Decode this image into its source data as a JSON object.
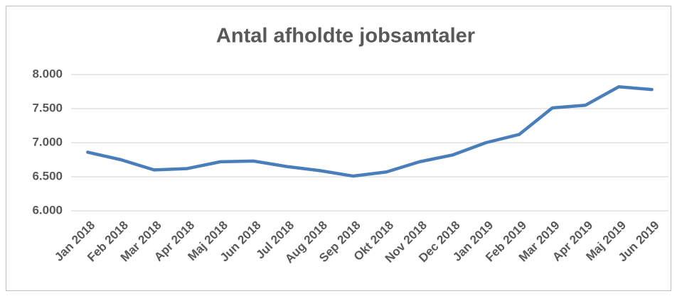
{
  "chart_data": {
    "type": "line",
    "title": "Antal afholdte jobsamtaler",
    "categories": [
      "Jan 2018",
      "Feb 2018",
      "Mar 2018",
      "Apr 2018",
      "Maj 2018",
      "Jun 2018",
      "Jul 2018",
      "Aug 2018",
      "Sep 2018",
      "Okt 2018",
      "Nov 2018",
      "Dec 2018",
      "Jan 2019",
      "Feb 2019",
      "Mar 2019",
      "Apr 2019",
      "Maj 2019",
      "Jun 2019"
    ],
    "values": [
      6860,
      6750,
      6600,
      6620,
      6720,
      6730,
      6650,
      6590,
      6510,
      6570,
      6720,
      6820,
      7000,
      7120,
      7510,
      7550,
      7820,
      7780
    ],
    "color": "#4a7ebb",
    "ylim": [
      6000,
      8000
    ],
    "yticks": [
      {
        "value": 6000,
        "label": "6.000"
      },
      {
        "value": 6500,
        "label": "6.500"
      },
      {
        "value": 7000,
        "label": "7.000"
      },
      {
        "value": 7500,
        "label": "7.500"
      },
      {
        "value": 8000,
        "label": "8.000"
      }
    ],
    "grid": true
  }
}
